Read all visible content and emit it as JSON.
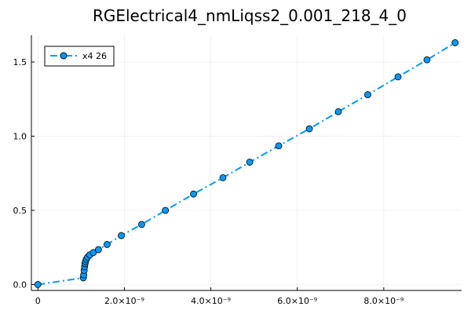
{
  "chart_data": {
    "type": "line",
    "title": "RGElectrical4_nmLiqss2_0.001_218_4_0",
    "xlabel": "",
    "ylabel": "",
    "xlim": [
      -1.5e-10,
      9.8e-09
    ],
    "ylim": [
      -0.04,
      1.68
    ],
    "grid": true,
    "legend_position": "top-left",
    "x_ticks": [
      {
        "value": 0,
        "label": "0"
      },
      {
        "value": 2e-09,
        "label": "2.0×10⁻⁹"
      },
      {
        "value": 4e-09,
        "label": "4.0×10⁻⁹"
      },
      {
        "value": 6e-09,
        "label": "6.0×10⁻⁹"
      },
      {
        "value": 8e-09,
        "label": "8.0×10⁻⁹"
      }
    ],
    "y_ticks": [
      {
        "value": 0.0,
        "label": "0.0"
      },
      {
        "value": 0.5,
        "label": "0.5"
      },
      {
        "value": 1.0,
        "label": "1.0"
      },
      {
        "value": 1.5,
        "label": "1.5"
      }
    ],
    "series": [
      {
        "name": "x4 26",
        "color": "#009af9",
        "line_style": "dash-dot",
        "marker": "circle",
        "x": [
          0,
          1.05e-09,
          1.06e-09,
          1.07e-09,
          1.08e-09,
          1.09e-09,
          1.1e-09,
          1.12e-09,
          1.15e-09,
          1.2e-09,
          1.28e-09,
          1.4e-09,
          1.6e-09,
          1.93e-09,
          2.4e-09,
          2.95e-09,
          3.6e-09,
          4.28e-09,
          4.9e-09,
          5.57e-09,
          6.28e-09,
          6.95e-09,
          7.63e-09,
          8.33e-09,
          9e-09,
          9.65e-09
        ],
        "y": [
          0.0,
          0.045,
          0.065,
          0.095,
          0.12,
          0.14,
          0.155,
          0.17,
          0.185,
          0.2,
          0.215,
          0.235,
          0.27,
          0.33,
          0.405,
          0.5,
          0.61,
          0.72,
          0.825,
          0.935,
          1.05,
          1.165,
          1.28,
          1.4,
          1.515,
          1.63
        ]
      }
    ]
  }
}
